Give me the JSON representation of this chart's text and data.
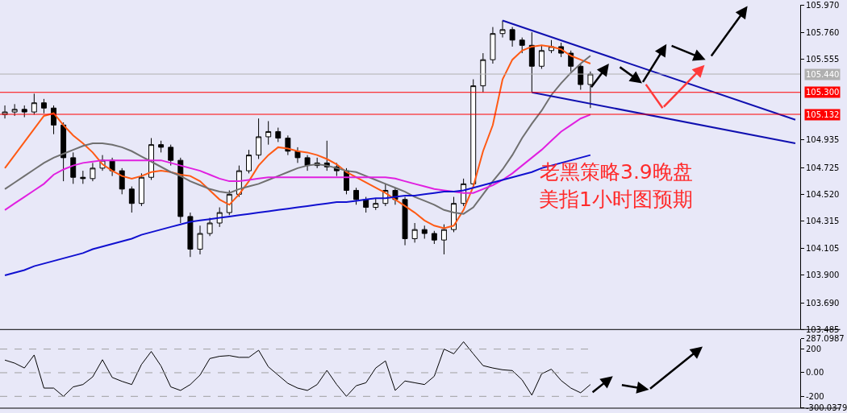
{
  "chart_data": [
    {
      "type": "candlestick",
      "categories": [
        null,
        null,
        null,
        null,
        null,
        null,
        null,
        null,
        null,
        null,
        null,
        null,
        null,
        null,
        null,
        null,
        null,
        null,
        null,
        null,
        null,
        null,
        null,
        null,
        null,
        null,
        null,
        null,
        null,
        null,
        null,
        null,
        null,
        null,
        null,
        null,
        null,
        null,
        null,
        null,
        null,
        null,
        null,
        null,
        null,
        null,
        null,
        null,
        null,
        null,
        null,
        null,
        null,
        null,
        null,
        null,
        null,
        null,
        null,
        null,
        null,
        null,
        null,
        null,
        null,
        null,
        null,
        null,
        null,
        null,
        null,
        null,
        null,
        null,
        null,
        null,
        null,
        null,
        null,
        null,
        null,
        null
      ],
      "ohlc": [
        [
          105.13,
          105.2,
          105.1,
          105.15
        ],
        [
          105.15,
          105.21,
          105.12,
          105.17
        ],
        [
          105.17,
          105.2,
          105.11,
          105.15
        ],
        [
          105.15,
          105.29,
          105.13,
          105.22
        ],
        [
          105.22,
          105.25,
          105.14,
          105.18
        ],
        [
          105.18,
          105.2,
          104.98,
          105.05
        ],
        [
          105.05,
          105.07,
          104.62,
          104.8
        ],
        [
          104.8,
          104.84,
          104.6,
          104.65
        ],
        [
          104.65,
          104.7,
          104.6,
          104.64
        ],
        [
          104.64,
          104.76,
          104.62,
          104.72
        ],
        [
          104.72,
          104.82,
          104.7,
          104.78
        ],
        [
          104.78,
          104.8,
          104.66,
          104.7
        ],
        [
          104.7,
          104.72,
          104.52,
          104.56
        ],
        [
          104.56,
          104.58,
          104.38,
          104.45
        ],
        [
          104.45,
          104.68,
          104.43,
          104.65
        ],
        [
          104.65,
          104.95,
          104.63,
          104.9
        ],
        [
          104.9,
          104.93,
          104.84,
          104.88
        ],
        [
          104.88,
          104.9,
          104.74,
          104.78
        ],
        [
          104.78,
          104.8,
          104.3,
          104.35
        ],
        [
          104.35,
          104.38,
          104.04,
          104.1
        ],
        [
          104.1,
          104.28,
          104.06,
          104.22
        ],
        [
          104.22,
          104.34,
          104.2,
          104.3
        ],
        [
          104.3,
          104.42,
          104.27,
          104.38
        ],
        [
          104.38,
          104.55,
          104.36,
          104.52
        ],
        [
          104.52,
          104.74,
          104.5,
          104.7
        ],
        [
          104.7,
          104.86,
          104.68,
          104.82
        ],
        [
          104.82,
          105.1,
          104.79,
          104.96
        ],
        [
          104.96,
          105.08,
          104.9,
          105.0
        ],
        [
          105.0,
          105.03,
          104.92,
          104.95
        ],
        [
          104.95,
          104.97,
          104.82,
          104.85
        ],
        [
          104.85,
          104.88,
          104.76,
          104.8
        ],
        [
          104.8,
          104.82,
          104.7,
          104.74
        ],
        [
          104.74,
          104.8,
          104.72,
          104.76
        ],
        [
          104.76,
          104.93,
          104.7,
          104.73
        ],
        [
          104.73,
          104.76,
          104.66,
          104.7
        ],
        [
          104.7,
          104.72,
          104.52,
          104.55
        ],
        [
          104.55,
          104.57,
          104.44,
          104.48
        ],
        [
          104.48,
          104.5,
          104.38,
          104.42
        ],
        [
          104.42,
          104.49,
          104.4,
          104.45
        ],
        [
          104.45,
          104.6,
          104.43,
          104.55
        ],
        [
          104.55,
          104.57,
          104.44,
          104.48
        ],
        [
          104.48,
          104.5,
          104.13,
          104.18
        ],
        [
          104.18,
          104.3,
          104.15,
          104.25
        ],
        [
          104.25,
          104.28,
          104.18,
          104.22
        ],
        [
          104.22,
          104.24,
          104.14,
          104.17
        ],
        [
          104.17,
          104.29,
          104.06,
          104.25
        ],
        [
          104.25,
          104.5,
          104.23,
          104.45
        ],
        [
          104.45,
          104.64,
          104.43,
          104.6
        ],
        [
          104.6,
          105.4,
          104.58,
          105.35
        ],
        [
          105.35,
          105.6,
          105.3,
          105.55
        ],
        [
          105.55,
          105.8,
          105.52,
          105.75
        ],
        [
          105.75,
          105.85,
          105.72,
          105.78
        ],
        [
          105.78,
          105.8,
          105.65,
          105.7
        ],
        [
          105.7,
          105.72,
          105.6,
          105.66
        ],
        [
          105.66,
          105.76,
          105.3,
          105.5
        ],
        [
          105.5,
          105.66,
          105.48,
          105.62
        ],
        [
          105.62,
          105.7,
          105.6,
          105.65
        ],
        [
          105.65,
          105.68,
          105.57,
          105.6
        ],
        [
          105.6,
          105.62,
          105.46,
          105.5
        ],
        [
          105.5,
          105.52,
          105.32,
          105.36
        ],
        [
          105.36,
          105.46,
          105.18,
          105.44
        ],
        null,
        null,
        null,
        null,
        null,
        null,
        null,
        null,
        null,
        null,
        null,
        null,
        null,
        null,
        null,
        null,
        null,
        null,
        null,
        null,
        null
      ],
      "series": [
        {
          "type": "line",
          "color": "#ff5a14",
          "values": [
            104.72,
            104.82,
            104.92,
            105.02,
            105.12,
            105.14,
            105.05,
            104.97,
            104.91,
            104.84,
            104.75,
            104.7,
            104.66,
            104.64,
            104.66,
            104.69,
            104.7,
            104.69,
            104.67,
            104.66,
            104.62,
            104.55,
            104.48,
            104.44,
            104.52,
            104.62,
            104.74,
            104.82,
            104.88,
            104.87,
            104.85,
            104.84,
            104.82,
            104.79,
            104.75,
            104.69,
            104.65,
            104.61,
            104.57,
            104.53,
            104.48,
            104.43,
            104.38,
            104.32,
            104.28,
            104.26,
            104.28,
            104.4,
            104.58,
            104.85,
            105.05,
            105.4,
            105.55,
            105.62,
            105.65,
            105.66,
            105.65,
            105.63,
            105.58,
            105.55,
            105.52,
            null,
            null,
            null,
            null,
            null,
            null,
            null,
            null,
            null,
            null,
            null,
            null,
            null,
            null,
            null,
            null,
            null,
            null,
            null,
            null,
            null
          ]
        },
        {
          "type": "line",
          "color": "#707070",
          "values": [
            104.56,
            104.61,
            104.66,
            104.71,
            104.76,
            104.8,
            104.83,
            104.86,
            104.89,
            104.91,
            104.91,
            104.9,
            104.88,
            104.85,
            104.81,
            104.77,
            104.73,
            104.69,
            104.66,
            104.62,
            104.59,
            104.56,
            104.54,
            104.53,
            104.56,
            104.58,
            104.6,
            104.63,
            104.66,
            104.69,
            104.72,
            104.74,
            104.75,
            104.74,
            104.72,
            104.7,
            104.69,
            104.66,
            104.63,
            104.6,
            104.57,
            104.54,
            104.5,
            104.47,
            104.44,
            104.4,
            104.38,
            104.37,
            104.42,
            104.52,
            104.62,
            104.71,
            104.82,
            104.95,
            105.06,
            105.16,
            105.28,
            105.37,
            105.45,
            105.52,
            105.58,
            null,
            null,
            null,
            null,
            null,
            null,
            null,
            null,
            null,
            null,
            null,
            null,
            null,
            null,
            null,
            null,
            null,
            null,
            null,
            null,
            null
          ]
        },
        {
          "type": "line",
          "color": "#e020e0",
          "values": [
            104.4,
            104.45,
            104.5,
            104.55,
            104.6,
            104.67,
            104.71,
            104.74,
            104.76,
            104.77,
            104.78,
            104.78,
            104.78,
            104.78,
            104.78,
            104.78,
            104.78,
            104.76,
            104.74,
            104.72,
            104.7,
            104.67,
            104.64,
            104.62,
            104.62,
            104.63,
            104.64,
            104.65,
            104.65,
            104.65,
            104.65,
            104.65,
            104.65,
            104.65,
            104.65,
            104.65,
            104.65,
            104.65,
            104.65,
            104.65,
            104.64,
            104.62,
            104.6,
            104.58,
            104.56,
            104.55,
            104.54,
            104.53,
            104.53,
            104.56,
            104.59,
            104.63,
            104.68,
            104.74,
            104.8,
            104.86,
            104.93,
            105.0,
            105.05,
            105.1,
            105.13,
            null,
            null,
            null,
            null,
            null,
            null,
            null,
            null,
            null,
            null,
            null,
            null,
            null,
            null,
            null,
            null,
            null,
            null,
            null,
            null,
            null
          ]
        },
        {
          "type": "line",
          "color": "#1010d0",
          "values": [
            103.9,
            103.92,
            103.94,
            103.97,
            103.99,
            104.01,
            104.03,
            104.05,
            104.07,
            104.1,
            104.12,
            104.14,
            104.16,
            104.18,
            104.21,
            104.23,
            104.25,
            104.27,
            104.29,
            104.31,
            104.32,
            104.33,
            104.34,
            104.35,
            104.36,
            104.37,
            104.38,
            104.39,
            104.4,
            104.41,
            104.42,
            104.43,
            104.44,
            104.45,
            104.46,
            104.46,
            104.47,
            104.48,
            104.49,
            104.49,
            104.5,
            104.51,
            104.51,
            104.52,
            104.53,
            104.54,
            104.54,
            104.55,
            104.57,
            104.59,
            104.61,
            104.63,
            104.65,
            104.67,
            104.69,
            104.72,
            104.74,
            104.76,
            104.78,
            104.8,
            104.82,
            null,
            null,
            null,
            null,
            null,
            null,
            null,
            null,
            null,
            null,
            null,
            null,
            null,
            null,
            null,
            null,
            null,
            null,
            null,
            null,
            null
          ]
        },
        {
          "type": "line",
          "color": "#1010b0",
          "values": [
            null,
            null,
            null,
            null,
            null,
            null,
            null,
            null,
            null,
            null,
            null,
            null,
            null,
            null,
            null,
            null,
            null,
            null,
            null,
            null,
            null,
            null,
            null,
            null,
            null,
            null,
            null,
            null,
            null,
            null,
            null,
            null,
            null,
            null,
            null,
            null,
            null,
            null,
            null,
            null,
            null,
            null,
            null,
            null,
            null,
            null,
            null,
            null,
            null,
            null,
            null,
            105.85,
            null,
            null,
            null,
            null,
            null,
            null,
            null,
            null,
            null,
            null,
            null,
            null,
            null,
            null,
            null,
            null,
            null,
            null,
            null,
            null,
            null,
            null,
            null,
            null,
            null,
            null,
            null,
            null,
            null,
            105.09
          ]
        },
        {
          "type": "line",
          "color": "#1010b0",
          "values": [
            null,
            null,
            null,
            null,
            null,
            null,
            null,
            null,
            null,
            null,
            null,
            null,
            null,
            null,
            null,
            null,
            null,
            null,
            null,
            null,
            null,
            null,
            null,
            null,
            null,
            null,
            null,
            null,
            null,
            null,
            null,
            null,
            null,
            null,
            null,
            null,
            null,
            null,
            null,
            null,
            null,
            null,
            null,
            null,
            null,
            null,
            null,
            null,
            null,
            null,
            null,
            null,
            null,
            null,
            105.3,
            null,
            null,
            null,
            null,
            null,
            null,
            null,
            null,
            null,
            null,
            null,
            null,
            null,
            null,
            null,
            null,
            null,
            null,
            null,
            null,
            null,
            null,
            null,
            null,
            null,
            null,
            104.91
          ]
        }
      ],
      "ylim": [
        103.485,
        105.97
      ],
      "yticks": [
        {
          "value": 105.97,
          "label": "105.970"
        },
        {
          "value": 105.76,
          "label": "105.760"
        },
        {
          "value": 105.555,
          "label": "105.555"
        },
        {
          "value": 104.935,
          "label": "104.935"
        },
        {
          "value": 104.725,
          "label": "104.725"
        },
        {
          "value": 104.52,
          "label": "104.520"
        },
        {
          "value": 104.315,
          "label": "104.315"
        },
        {
          "value": 104.105,
          "label": "104.105"
        },
        {
          "value": 103.9,
          "label": "103.900"
        },
        {
          "value": 103.69,
          "label": "103.690"
        },
        {
          "value": 103.485,
          "label": "103.485"
        }
      ],
      "ref_lines": [
        {
          "axis": "y",
          "value": 105.44,
          "label": "105.440",
          "color": "#b0b0b0"
        },
        {
          "axis": "y",
          "value": 105.3,
          "label": "105.300",
          "color": "#ff0000"
        },
        {
          "axis": "y",
          "value": 105.132,
          "label": "105.132",
          "color": "#ff0000"
        }
      ],
      "annotations": [
        "老黑策略3.9晚盘",
        "美指1小时图预期"
      ],
      "tick_labels": "y",
      "grid": false
    },
    {
      "type": "line",
      "categories": [
        null,
        null,
        null,
        null,
        null,
        null,
        null,
        null,
        null,
        null,
        null,
        null,
        null,
        null,
        null,
        null,
        null,
        null,
        null,
        null,
        null,
        null,
        null,
        null,
        null,
        null,
        null,
        null,
        null,
        null,
        null,
        null,
        null,
        null,
        null,
        null,
        null,
        null,
        null,
        null,
        null,
        null,
        null,
        null,
        null,
        null,
        null,
        null,
        null,
        null,
        null,
        null,
        null,
        null,
        null,
        null,
        null,
        null,
        null,
        null,
        null
      ],
      "series": [
        {
          "color": "#000000",
          "values": [
            107,
            81,
            40,
            150,
            -130,
            -130,
            -200,
            -120,
            -100,
            -35,
            110,
            -40,
            -73,
            -100,
            70,
            180,
            57,
            -120,
            -150,
            -100,
            -20,
            120,
            139,
            145,
            130,
            130,
            190,
            50,
            -20,
            -90,
            -130,
            -150,
            -100,
            20,
            -100,
            -200,
            -110,
            -85,
            40,
            100,
            -150,
            -70,
            -85,
            -100,
            -30,
            200,
            160,
            262,
            160,
            60,
            40,
            25,
            18,
            -60,
            -190,
            -10,
            30,
            -66,
            -130,
            -170,
            -100
          ]
        }
      ],
      "ylim": [
        -300.0379,
        287.0987
      ],
      "yticks": [
        {
          "value": 287.0987,
          "label": "287.0987"
        },
        200,
        {
          "value": 0,
          "label": "0.00"
        },
        -200,
        {
          "value": -300.0379,
          "label": "-300.0379"
        }
      ],
      "ref_lines": [
        {
          "axis": "y",
          "value": 200,
          "color": "#a0a0a0",
          "line_style": "dashed"
        },
        {
          "axis": "y",
          "value": 0,
          "color": "#a0a0a0",
          "line_style": "dashed"
        },
        {
          "axis": "y",
          "value": -200,
          "color": "#a0a0a0",
          "line_style": "dashed"
        }
      ],
      "tick_labels": "y",
      "grid": false
    }
  ]
}
